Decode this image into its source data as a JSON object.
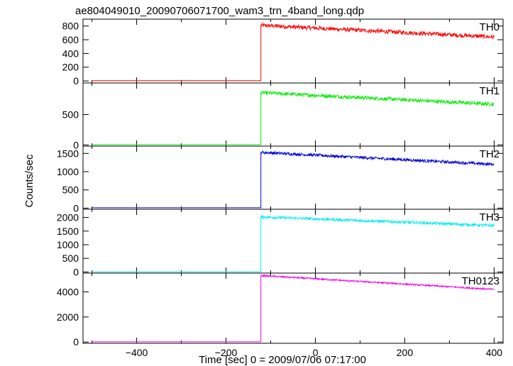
{
  "title": "ae804049010_20090706071700_wam3_trn_4band_long.qdp",
  "chart_data": {
    "type": "line",
    "title": "ae804049010_20090706071700_wam3_trn_4band_long.qdp",
    "xlabel": "Time [sec] 0 = 2009/07/06 07:17:00",
    "ylabel": "Counts/sec",
    "xlim": [
      -520,
      420
    ],
    "x_ticks": [
      -400,
      -200,
      0,
      200,
      400
    ],
    "x_tick_labels": [
      "−400",
      "−200",
      "0",
      "200",
      "400"
    ],
    "grid": false,
    "step_time": -122,
    "x_start": -500,
    "x_end": 400,
    "panels": [
      {
        "name": "TH0",
        "color": "#ff0000",
        "ylim": [
          -30,
          900
        ],
        "y_ticks": [
          0,
          200,
          400,
          600,
          800
        ],
        "pre_level": 3,
        "post_start": 810,
        "post_end": 640,
        "noise": 30
      },
      {
        "name": "TH1",
        "color": "#00ee00",
        "ylim": [
          -20,
          1020
        ],
        "y_ticks": [
          0,
          500
        ],
        "pre_level": 3,
        "post_start": 860,
        "post_end": 670,
        "noise": 30
      },
      {
        "name": "TH2",
        "color": "#0000dd",
        "ylim": [
          -30,
          1700
        ],
        "y_ticks": [
          0,
          500,
          1000,
          1500
        ],
        "pre_level": 10,
        "post_start": 1530,
        "post_end": 1200,
        "noise": 40
      },
      {
        "name": "TH3",
        "color": "#00eeee",
        "ylim": [
          -40,
          2300
        ],
        "y_ticks": [
          0,
          500,
          1000,
          1500,
          2000
        ],
        "pre_level": 5,
        "post_start": 2020,
        "post_end": 1700,
        "noise": 50
      },
      {
        "name": "TH0123",
        "color": "#ee00ee",
        "ylim": [
          -100,
          5500
        ],
        "y_ticks": [
          0,
          2000,
          4000
        ],
        "pre_level": 20,
        "post_start": 5300,
        "post_end": 4200,
        "noise": 60
      }
    ]
  }
}
